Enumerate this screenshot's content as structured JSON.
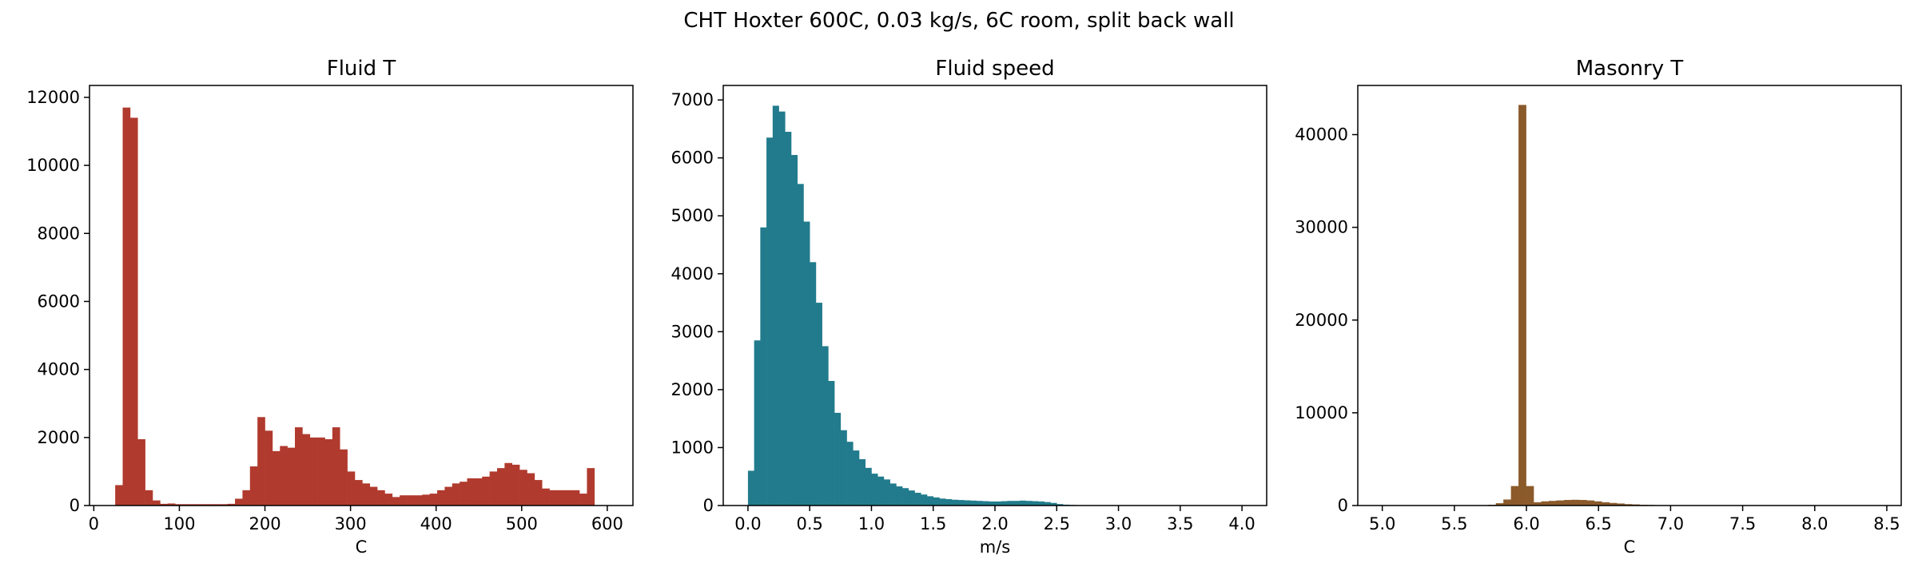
{
  "figure": {
    "title": "CHT Hoxter 600C, 0.03 kg/s, 6C room, split back wall"
  },
  "chart_data": [
    {
      "type": "bar",
      "subtype": "histogram",
      "title": "Fluid T",
      "xlabel": "C",
      "ylabel": "",
      "color": "#b03a2e",
      "xlim": [
        -5,
        630
      ],
      "ylim": [
        0,
        12350
      ],
      "xticks": [
        0,
        100,
        200,
        300,
        400,
        500,
        600
      ],
      "yticks": [
        0,
        2000,
        4000,
        6000,
        8000,
        10000,
        12000
      ],
      "bin_start": 25,
      "bin_width": 8.75,
      "values": [
        600,
        11700,
        11400,
        1950,
        450,
        150,
        50,
        60,
        40,
        40,
        40,
        40,
        40,
        40,
        40,
        50,
        200,
        450,
        1150,
        2600,
        2200,
        1600,
        1750,
        1700,
        2300,
        2100,
        2000,
        2000,
        1950,
        2300,
        1650,
        1000,
        750,
        650,
        550,
        450,
        350,
        250,
        300,
        300,
        300,
        320,
        350,
        450,
        550,
        650,
        700,
        800,
        800,
        850,
        1000,
        1100,
        1250,
        1200,
        1050,
        950,
        750,
        500,
        450,
        450,
        450,
        450,
        350,
        1100
      ]
    },
    {
      "type": "bar",
      "subtype": "histogram",
      "title": "Fluid speed",
      "xlabel": "m/s",
      "ylabel": "",
      "color": "#217b8c",
      "xlim": [
        -0.2,
        4.2
      ],
      "ylim": [
        0,
        7250
      ],
      "xticks": [
        0.0,
        0.5,
        1.0,
        1.5,
        2.0,
        2.5,
        3.0,
        3.5,
        4.0
      ],
      "yticks": [
        0,
        1000,
        2000,
        3000,
        4000,
        5000,
        6000,
        7000
      ],
      "bin_start": 0.0,
      "bin_width": 0.05,
      "values": [
        600,
        2850,
        4800,
        6350,
        6900,
        6800,
        6450,
        6050,
        5550,
        4900,
        4200,
        3500,
        2750,
        2150,
        1600,
        1300,
        1100,
        950,
        800,
        650,
        550,
        500,
        450,
        380,
        330,
        300,
        260,
        220,
        190,
        160,
        140,
        120,
        110,
        100,
        95,
        90,
        85,
        80,
        75,
        70,
        70,
        75,
        80,
        80,
        85,
        80,
        75,
        70,
        60,
        45,
        25,
        15,
        10,
        5,
        3,
        2,
        1
      ]
    },
    {
      "type": "bar",
      "subtype": "histogram",
      "title": "Masonry T",
      "xlabel": "C",
      "ylabel": "",
      "color": "#8b5a2b",
      "xlim": [
        4.83,
        8.6
      ],
      "ylim": [
        0,
        45300
      ],
      "xticks": [
        5.0,
        5.5,
        6.0,
        6.5,
        7.0,
        7.5,
        8.0,
        8.5
      ],
      "yticks": [
        0,
        10000,
        20000,
        30000,
        40000
      ],
      "bin_start": 5.0,
      "bin_width": 0.0525,
      "values": [
        0,
        0,
        0,
        0,
        0,
        0,
        0,
        0,
        0,
        0,
        0,
        0,
        5,
        20,
        80,
        250,
        650,
        2100,
        43200,
        2100,
        350,
        450,
        500,
        550,
        600,
        620,
        600,
        550,
        450,
        350,
        280,
        220,
        150,
        120,
        80,
        60,
        40,
        30,
        20,
        15,
        10,
        5,
        3,
        2,
        1,
        1,
        1,
        1,
        0,
        0,
        0,
        0,
        0,
        0,
        0,
        0,
        0,
        0,
        0,
        0,
        0,
        0,
        0,
        0,
        0,
        0,
        1
      ]
    }
  ]
}
